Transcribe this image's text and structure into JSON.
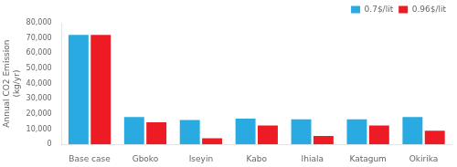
{
  "chart_data": {
    "type": "bar",
    "categories": [
      "Base case",
      "Gboko",
      "Iseyin",
      "Kabo",
      "Ihiala",
      "Katagum",
      "Okirika"
    ],
    "series": [
      {
        "name": "0.7$/lit",
        "color": "#29ABE2",
        "values": [
          72000,
          18000,
          16000,
          17000,
          16500,
          16500,
          18000
        ]
      },
      {
        "name": "0.96$/lit",
        "color": "#ED1C24",
        "values": [
          72000,
          14500,
          4000,
          12500,
          5500,
          12500,
          9000
        ]
      }
    ],
    "ylabel": "Annual CO2 Emission\n(kg/yr)",
    "ylim": [
      0,
      80000
    ],
    "yticks": [
      0,
      {
        "value": 10000,
        "label": "10,000"
      },
      {
        "value": 20000,
        "label": "20,000"
      },
      {
        "value": 30000,
        "label": "30,000"
      },
      {
        "value": 40000,
        "label": "40,000"
      },
      {
        "value": 50000,
        "label": "50,000"
      },
      {
        "value": 60000,
        "label": "60,000"
      },
      {
        "value": 70000,
        "label": "70,000"
      },
      {
        "value": 80000,
        "label": "80,000"
      }
    ],
    "grid": false,
    "legend": "upper right"
  }
}
